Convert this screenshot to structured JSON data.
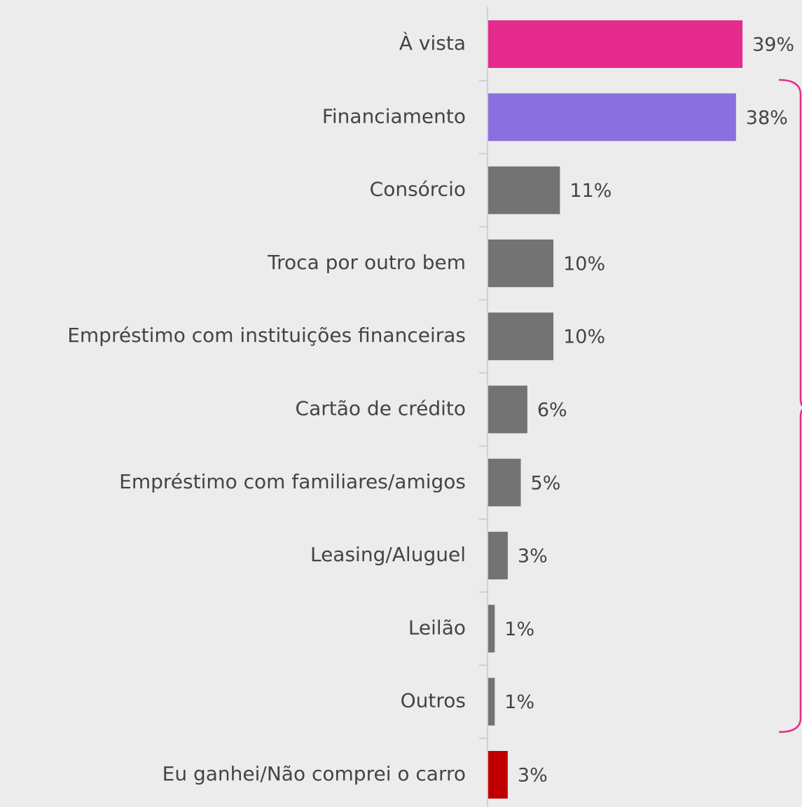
{
  "chart_data": {
    "type": "bar",
    "orientation": "horizontal",
    "categories": [
      "À vista",
      "Financiamento",
      "Consórcio",
      "Troca por outro bem",
      "Empréstimo com instituições financeiras",
      "Cartão de crédito",
      "Empréstimo com familiares/amigos",
      "Leasing/Aluguel",
      "Leilão",
      "Outros",
      "Eu ganhei/Não comprei o carro"
    ],
    "values": [
      39,
      38,
      11,
      10,
      10,
      6,
      5,
      3,
      1,
      1,
      3
    ],
    "value_labels": [
      "39%",
      "38%",
      "11%",
      "10%",
      "10%",
      "6%",
      "5%",
      "3%",
      "1%",
      "1%",
      "3%"
    ],
    "colors": [
      "#e52b8c",
      "#8a6fe0",
      "#737373",
      "#737373",
      "#737373",
      "#737373",
      "#737373",
      "#737373",
      "#737373",
      "#737373",
      "#c00000"
    ]
  }
}
